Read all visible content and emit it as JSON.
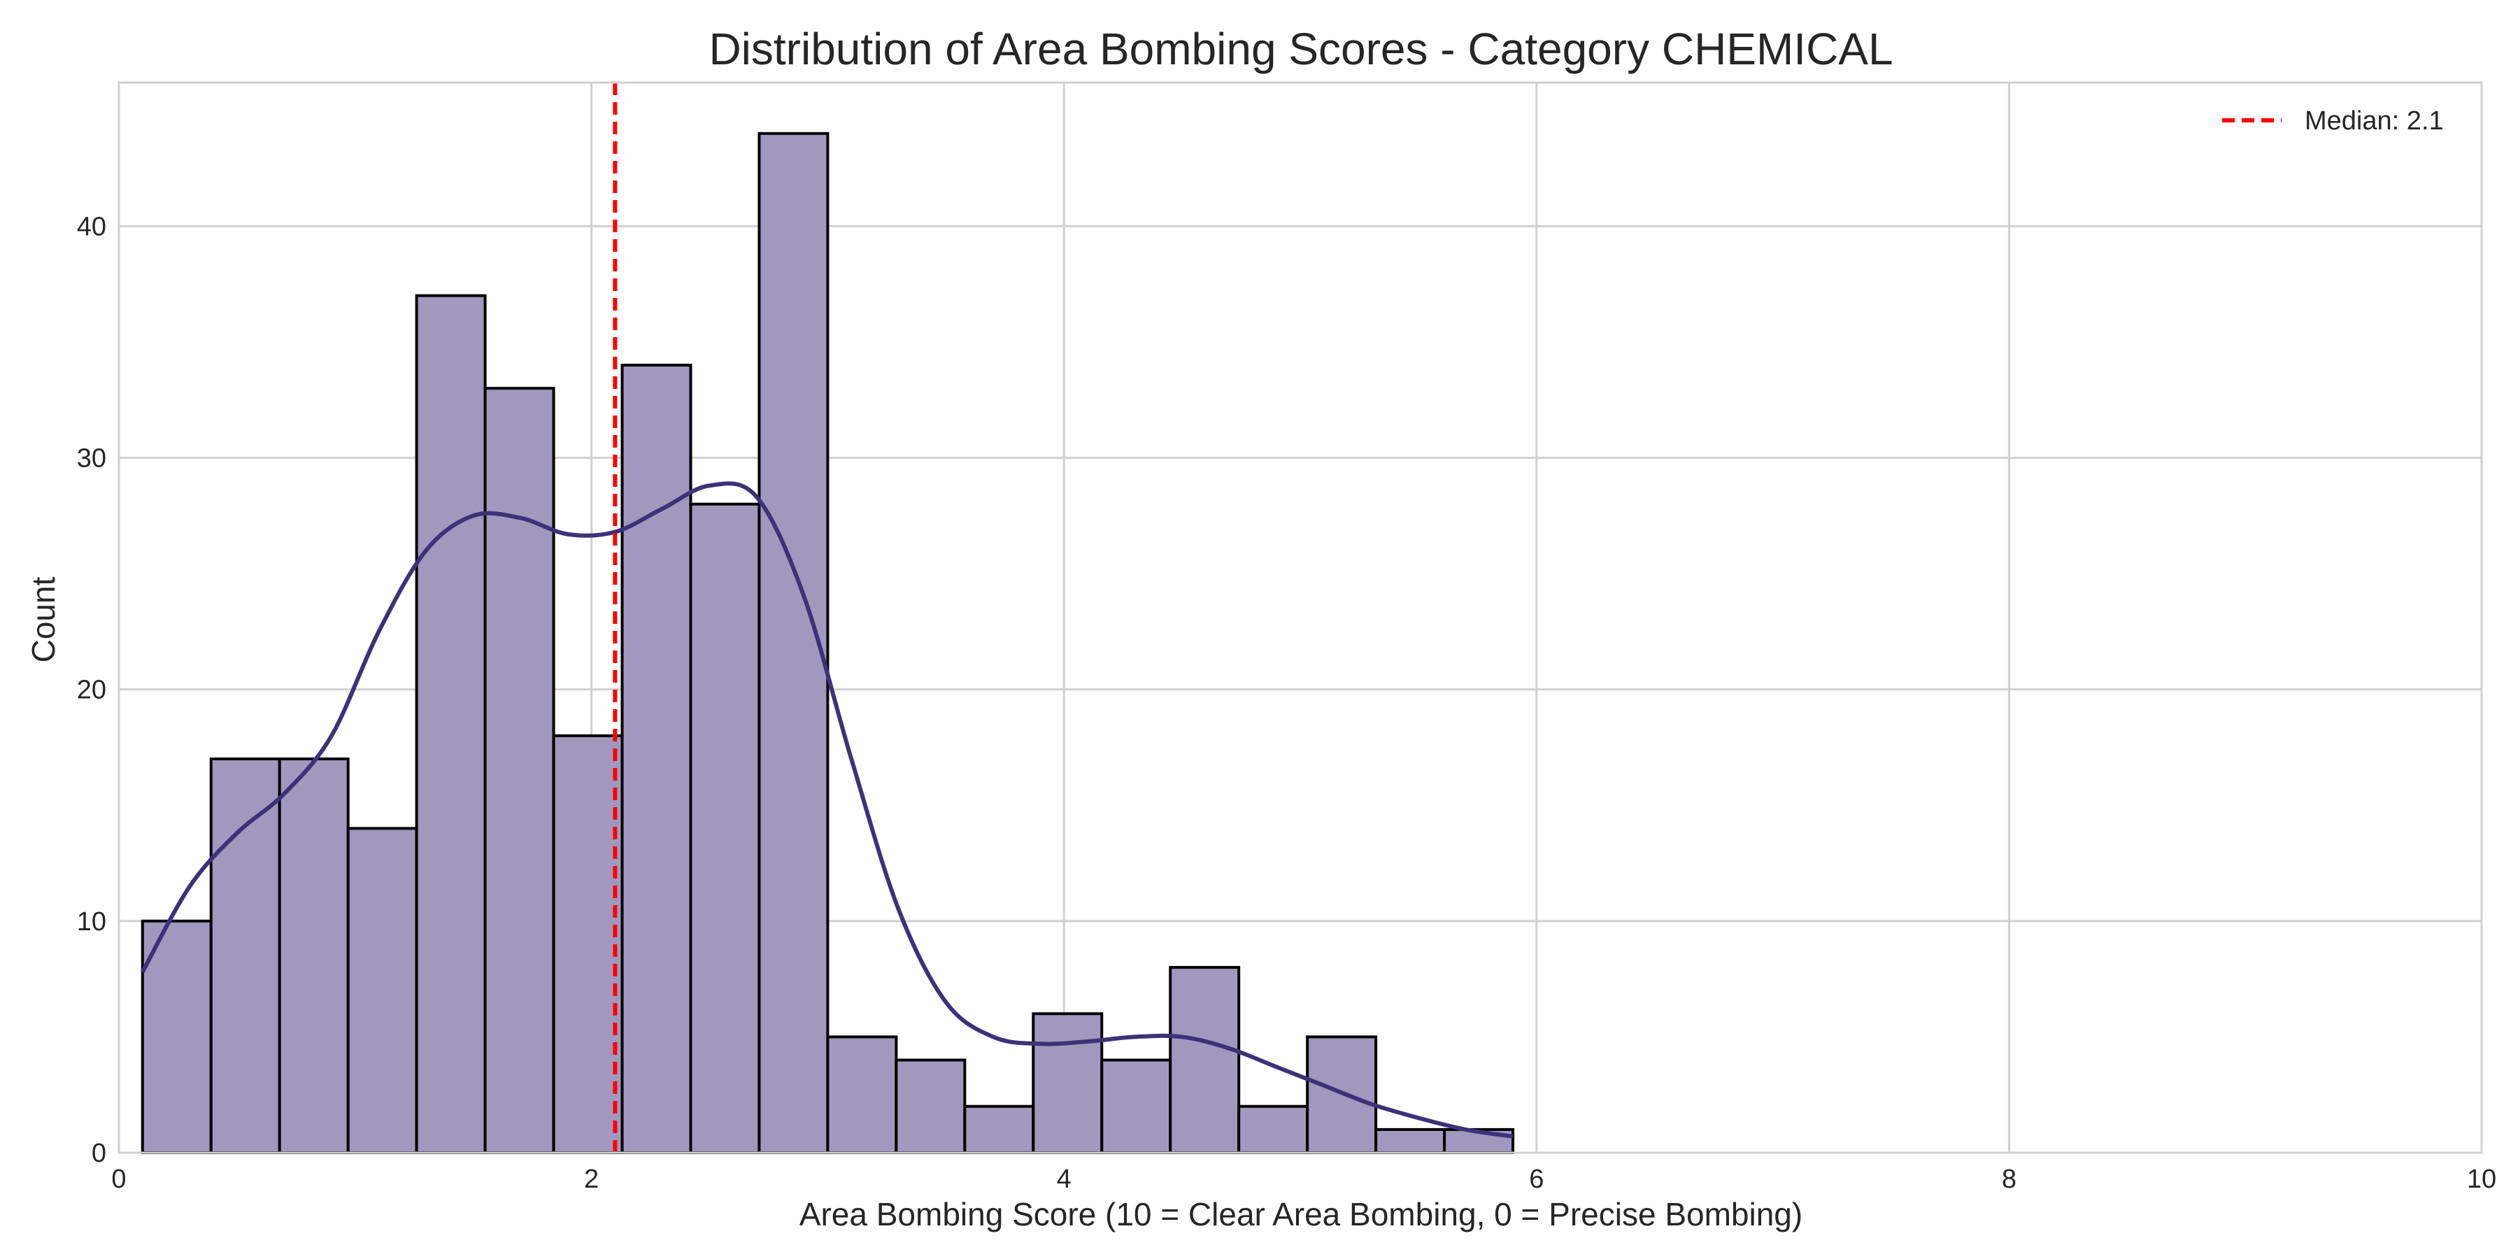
{
  "chart_data": {
    "type": "bar",
    "subtype": "histogram-with-kde",
    "title": "Distribution of Area Bombing Scores - Category CHEMICAL",
    "xlabel": "Area Bombing Score (10 = Clear Area Bombing, 0 = Precise Bombing)",
    "ylabel": "Count",
    "xlim": [
      0,
      10
    ],
    "ylim": [
      0,
      46.2
    ],
    "xticks": [
      0,
      2,
      4,
      6,
      8,
      10
    ],
    "yticks": [
      0,
      10,
      20,
      30,
      40
    ],
    "grid": true,
    "legend_position": "top-right",
    "bins": {
      "edges": [
        0.1,
        0.39,
        0.68,
        0.97,
        1.26,
        1.55,
        1.84,
        2.13,
        2.42,
        2.71,
        3.0,
        3.29,
        3.58,
        3.87,
        4.16,
        4.45,
        4.74,
        5.03,
        5.32,
        5.61,
        5.9
      ],
      "counts": [
        10,
        17,
        17,
        14,
        37,
        33,
        18,
        34,
        28,
        44,
        5,
        4,
        2,
        6,
        4,
        8,
        2,
        5,
        1,
        1
      ]
    },
    "kde": {
      "x": [
        0.1,
        0.3,
        0.5,
        0.7,
        0.9,
        1.1,
        1.3,
        1.5,
        1.7,
        1.9,
        2.1,
        2.3,
        2.5,
        2.7,
        2.9,
        3.1,
        3.3,
        3.5,
        3.7,
        3.9,
        4.1,
        4.3,
        4.5,
        4.7,
        4.9,
        5.1,
        5.3,
        5.5,
        5.7,
        5.9
      ],
      "y": [
        7.8,
        11.5,
        13.8,
        15.5,
        18.0,
        22.5,
        26.0,
        27.5,
        27.4,
        26.7,
        26.8,
        27.8,
        28.8,
        28.3,
        24.0,
        17.0,
        10.5,
        6.5,
        5.0,
        4.7,
        4.8,
        5.0,
        5.0,
        4.5,
        3.7,
        2.9,
        2.1,
        1.5,
        1.0,
        0.7
      ]
    },
    "median": {
      "value": 2.1,
      "label": "Median: 2.1",
      "color": "#ff0000"
    },
    "colors": {
      "bar_fill": "#a198be",
      "bar_edge": "#000000",
      "kde_line": "#3d3279",
      "grid": "#d0d0d0"
    }
  }
}
